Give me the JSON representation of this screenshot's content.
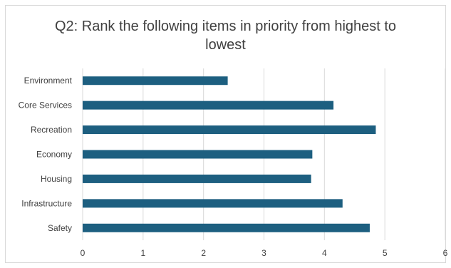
{
  "chart_data": {
    "type": "bar",
    "orientation": "horizontal",
    "title": "Q2: Rank the following items in priority from highest to lowest",
    "categories": [
      "Environment",
      "Core Services",
      "Recreation",
      "Economy",
      "Housing",
      "Infrastructure",
      "Safety"
    ],
    "values": [
      2.4,
      4.15,
      4.85,
      3.8,
      3.78,
      4.3,
      4.75
    ],
    "xlim": [
      0,
      6
    ],
    "xticks": [
      0,
      1,
      2,
      3,
      4,
      5,
      6
    ],
    "grid": true,
    "legend": "none",
    "xlabel": "",
    "ylabel": "",
    "colors": {
      "bar": "#1d5f80",
      "grid": "#d9d9d9",
      "text": "#404040"
    }
  }
}
